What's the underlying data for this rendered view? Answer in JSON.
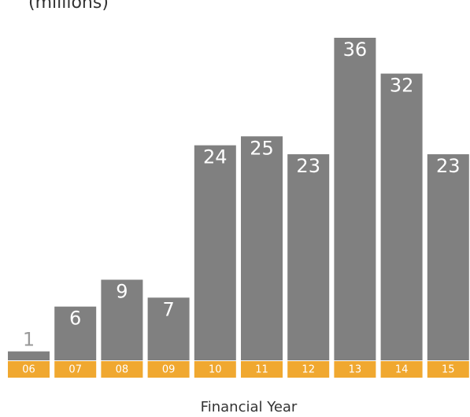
{
  "chart_data": {
    "type": "bar",
    "title": "(millions)",
    "x_label": "Financial Year",
    "categories": [
      "06",
      "07",
      "08",
      "09",
      "10",
      "11",
      "12",
      "13",
      "14",
      "15"
    ],
    "values": [
      1,
      6,
      9,
      7,
      24,
      25,
      23,
      36,
      32,
      23
    ],
    "color": "#808080",
    "category_color": "#f0a830"
  }
}
